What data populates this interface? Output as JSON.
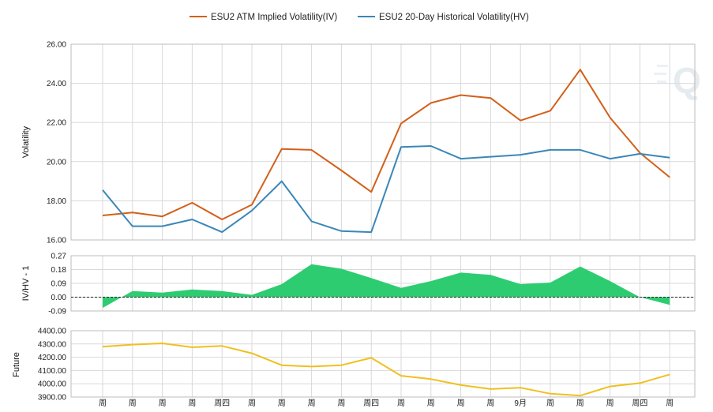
{
  "chart_data": {
    "type": "line",
    "legend": {
      "position": "top-center",
      "items": [
        {
          "label": "ESU2 ATM Implied Volatility(IV)",
          "color": "#d2601a"
        },
        {
          "label": "ESU2 20-Day Historical Volatility(HV)",
          "color": "#3a87b8"
        }
      ]
    },
    "x_tick_labels": [
      "周",
      "周",
      "周",
      "周",
      "周四",
      "周",
      "周",
      "周",
      "周",
      "周四",
      "周",
      "周",
      "周",
      "周",
      "9月",
      "周",
      "周",
      "周",
      "周四",
      "周"
    ],
    "panels": [
      {
        "id": "volatility",
        "type": "line",
        "ylabel": "Volatility",
        "ylim": [
          16,
          26
        ],
        "yticks": [
          16,
          18,
          20,
          22,
          24,
          26
        ],
        "ytick_labels": [
          "16.00",
          "18.00",
          "20.00",
          "22.00",
          "24.00",
          "26.00"
        ],
        "grid": true,
        "series": [
          {
            "name": "ESU2 ATM Implied Volatility(IV)",
            "color": "#d2601a",
            "values": [
              17.25,
              17.4,
              17.2,
              17.9,
              17.05,
              17.8,
              20.65,
              20.6,
              19.55,
              18.45,
              21.95,
              23.0,
              23.4,
              23.25,
              22.1,
              22.6,
              24.7,
              22.25,
              20.45,
              19.2
            ]
          },
          {
            "name": "ESU2 20-Day Historical Volatility(HV)",
            "color": "#3a87b8",
            "values": [
              18.55,
              16.7,
              16.7,
              17.05,
              16.4,
              17.5,
              19.0,
              16.95,
              16.45,
              16.4,
              20.75,
              20.8,
              20.15,
              20.25,
              20.35,
              20.6,
              20.6,
              20.15,
              20.4,
              20.2
            ]
          }
        ]
      },
      {
        "id": "ivhv",
        "type": "area",
        "ylabel": "IV/HV - 1",
        "ylim": [
          -0.09,
          0.27
        ],
        "yticks": [
          -0.09,
          0,
          0.09,
          0.18,
          0.27
        ],
        "ytick_labels": [
          "-0.09",
          "0.00",
          "0.09",
          "0.18",
          "0.27"
        ],
        "grid": true,
        "baseline": 0,
        "fill_color": "#2ecc71",
        "values": [
          -0.07,
          0.04,
          0.03,
          0.05,
          0.04,
          0.015,
          0.085,
          0.215,
          0.185,
          0.125,
          0.06,
          0.105,
          0.16,
          0.145,
          0.085,
          0.095,
          0.2,
          0.105,
          0.0,
          -0.05
        ]
      },
      {
        "id": "future",
        "type": "line",
        "ylabel": "Future",
        "ylim": [
          3900,
          4400
        ],
        "yticks": [
          3900,
          4000,
          4100,
          4200,
          4300,
          4400
        ],
        "ytick_labels": [
          "3900.00",
          "4000.00",
          "4100.00",
          "4200.00",
          "4300.00",
          "4400.00"
        ],
        "grid": true,
        "color": "#f0c020",
        "values": [
          4280,
          4295,
          4305,
          4275,
          4285,
          4230,
          4140,
          4130,
          4140,
          4195,
          4060,
          4035,
          3990,
          3960,
          3970,
          3925,
          3910,
          3980,
          4005,
          4070
        ]
      }
    ]
  }
}
